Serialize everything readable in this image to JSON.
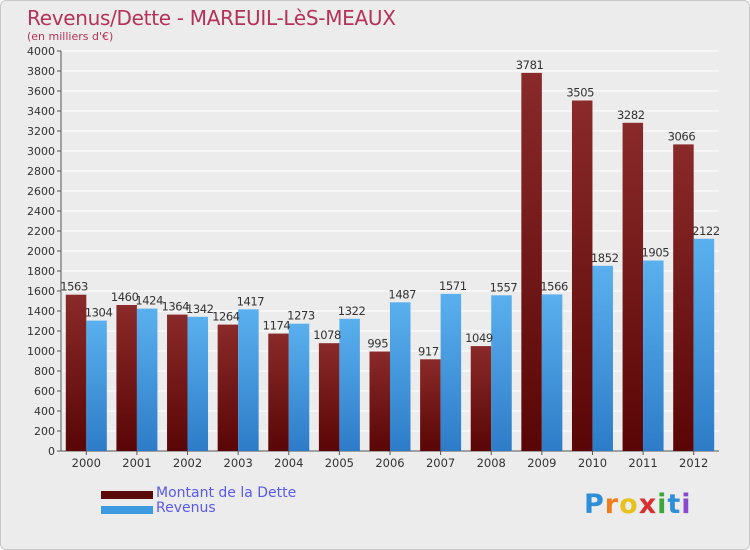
{
  "chart_data": {
    "type": "bar",
    "title": "Revenus/Dette - MAREUIL-LèS-MEAUX",
    "subtitle": "(en milliers d'€)",
    "categories": [
      "2000",
      "2001",
      "2002",
      "2003",
      "2004",
      "2005",
      "2006",
      "2007",
      "2008",
      "2009",
      "2010",
      "2011",
      "2012"
    ],
    "series": [
      {
        "name": "Montant de la Dette",
        "color": "#7a1a1a",
        "values": [
          1563,
          1460,
          1364,
          1264,
          1174,
          1078,
          995,
          917,
          1049,
          3781,
          3505,
          3282,
          3066
        ]
      },
      {
        "name": "Revenus",
        "color": "#4aa3e6",
        "values": [
          1304,
          1424,
          1342,
          1417,
          1273,
          1322,
          1487,
          1571,
          1557,
          1566,
          1852,
          1905,
          2122
        ]
      }
    ],
    "ylim": [
      0,
      4000
    ],
    "yticks": [
      0,
      200,
      400,
      600,
      800,
      1000,
      1200,
      1400,
      1600,
      1800,
      2000,
      2200,
      2400,
      2600,
      2800,
      3000,
      3200,
      3400,
      3600,
      3800,
      4000
    ],
    "grid": true,
    "legend_position": "bottom-left"
  },
  "legend": {
    "items": [
      {
        "label": "Montant de la Dette",
        "color": "#5a0a0a"
      },
      {
        "label": "Revenus",
        "color": "#3d9ae0"
      }
    ]
  },
  "logo": {
    "letters": [
      "P",
      "r",
      "o",
      "x",
      "i",
      "t",
      "i"
    ],
    "colors": [
      "#2e8fd8",
      "#f07c1c",
      "#e8c21c",
      "#d83030",
      "#3aa83a",
      "#2e8fd8",
      "#8a4ad0"
    ]
  }
}
